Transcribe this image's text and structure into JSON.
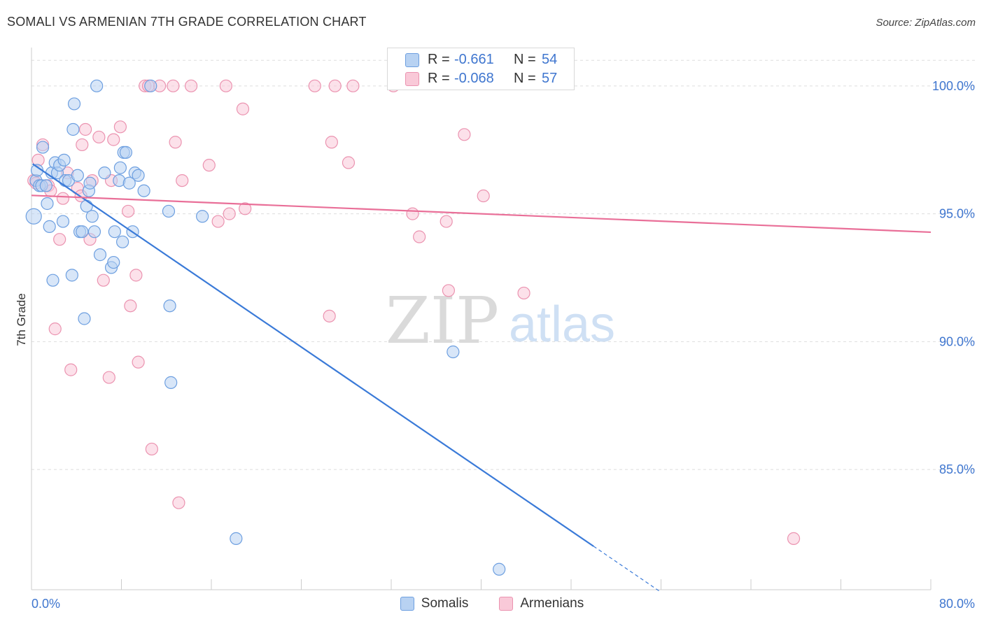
{
  "header": {
    "title": "SOMALI VS ARMENIAN 7TH GRADE CORRELATION CHART",
    "source": "Source: ZipAtlas.com"
  },
  "watermark": {
    "zip": "ZIP",
    "atlas": "atlas"
  },
  "stats": [
    {
      "r_label": "R =",
      "r_value": "-0.661",
      "n_label": "N =",
      "n_value": "54"
    },
    {
      "r_label": "R =",
      "r_value": "-0.068",
      "n_label": "N =",
      "n_value": "57"
    }
  ],
  "legend": {
    "series1": "Somalis",
    "series2": "Armenians"
  },
  "colors": {
    "blue_fill": "#b8d2f2",
    "blue_stroke": "#6d9fe0",
    "blue_line": "#3a7ad8",
    "pink_fill": "#f9c9d8",
    "pink_stroke": "#eb93b0",
    "pink_line": "#e96f98",
    "axis_text": "#3f76cf"
  },
  "chart_data": {
    "type": "scatter",
    "title": "SOMALI VS ARMENIAN 7TH GRADE CORRELATION CHART",
    "xlabel": "",
    "ylabel": "7th Grade",
    "xlim": [
      0,
      80
    ],
    "ylim": [
      80.3,
      101.5
    ],
    "x_tick_labels": [
      "0.0%",
      "80.0%"
    ],
    "y_ticks": [
      {
        "value": 85,
        "label": "85.0%"
      },
      {
        "value": 90,
        "label": "90.0%"
      },
      {
        "value": 95,
        "label": "95.0%"
      },
      {
        "value": 100,
        "label": "100.0%"
      }
    ],
    "grid": true,
    "legend_position": "bottom",
    "series": [
      {
        "name": "Somalis",
        "r": -0.661,
        "n": 54,
        "trend": {
          "x0": 0.1,
          "y0": 96.95,
          "x1": 50.0,
          "y1": 82.0,
          "dash_to_x": 56.0
        },
        "points": [
          [
            0.2,
            94.9
          ],
          [
            0.4,
            96.3
          ],
          [
            0.5,
            96.7
          ],
          [
            0.7,
            96.1
          ],
          [
            0.9,
            96.1
          ],
          [
            1.0,
            97.6
          ],
          [
            1.3,
            96.1
          ],
          [
            1.4,
            95.4
          ],
          [
            1.6,
            94.5
          ],
          [
            1.8,
            96.6
          ],
          [
            1.9,
            92.4
          ],
          [
            2.1,
            97.0
          ],
          [
            2.3,
            96.6
          ],
          [
            2.5,
            96.9
          ],
          [
            2.8,
            94.7
          ],
          [
            2.9,
            97.1
          ],
          [
            3.0,
            96.3
          ],
          [
            3.3,
            96.3
          ],
          [
            3.6,
            92.6
          ],
          [
            3.7,
            98.3
          ],
          [
            3.8,
            99.3
          ],
          [
            4.1,
            96.5
          ],
          [
            4.3,
            94.3
          ],
          [
            4.5,
            94.3
          ],
          [
            4.7,
            90.9
          ],
          [
            4.9,
            95.3
          ],
          [
            5.1,
            95.9
          ],
          [
            5.2,
            96.2
          ],
          [
            5.4,
            94.9
          ],
          [
            5.6,
            94.3
          ],
          [
            5.8,
            100.0
          ],
          [
            6.1,
            93.4
          ],
          [
            6.5,
            96.6
          ],
          [
            7.1,
            92.9
          ],
          [
            7.3,
            93.1
          ],
          [
            7.4,
            94.3
          ],
          [
            7.8,
            96.3
          ],
          [
            7.9,
            96.8
          ],
          [
            8.1,
            93.9
          ],
          [
            8.2,
            97.4
          ],
          [
            8.4,
            97.4
          ],
          [
            8.7,
            96.2
          ],
          [
            9.0,
            94.3
          ],
          [
            9.2,
            96.6
          ],
          [
            9.5,
            96.5
          ],
          [
            10.0,
            95.9
          ],
          [
            10.6,
            100.0
          ],
          [
            12.2,
            95.1
          ],
          [
            12.3,
            91.4
          ],
          [
            12.4,
            88.4
          ],
          [
            15.2,
            94.9
          ],
          [
            18.2,
            82.3
          ],
          [
            37.5,
            89.6
          ],
          [
            41.6,
            81.1
          ]
        ]
      },
      {
        "name": "Armenians",
        "r": -0.068,
        "n": 57,
        "trend": {
          "x0": 0.0,
          "y0": 95.72,
          "x1": 80.0,
          "y1": 94.28
        },
        "points": [
          [
            0.2,
            96.3
          ],
          [
            0.4,
            96.2
          ],
          [
            0.6,
            97.1
          ],
          [
            1.0,
            97.7
          ],
          [
            1.5,
            96.1
          ],
          [
            1.7,
            95.9
          ],
          [
            2.1,
            90.5
          ],
          [
            2.5,
            94.0
          ],
          [
            2.8,
            95.6
          ],
          [
            3.2,
            96.6
          ],
          [
            3.5,
            88.9
          ],
          [
            4.1,
            96.0
          ],
          [
            4.4,
            95.7
          ],
          [
            4.5,
            97.7
          ],
          [
            4.8,
            98.3
          ],
          [
            5.2,
            94.0
          ],
          [
            5.4,
            96.3
          ],
          [
            6.0,
            98.0
          ],
          [
            6.4,
            92.4
          ],
          [
            6.9,
            88.6
          ],
          [
            7.1,
            96.3
          ],
          [
            7.3,
            97.9
          ],
          [
            7.9,
            98.4
          ],
          [
            8.6,
            95.1
          ],
          [
            8.8,
            91.4
          ],
          [
            9.3,
            92.6
          ],
          [
            9.5,
            89.2
          ],
          [
            10.1,
            100.0
          ],
          [
            10.4,
            100.0
          ],
          [
            10.7,
            85.8
          ],
          [
            11.4,
            100.0
          ],
          [
            12.6,
            100.0
          ],
          [
            12.8,
            97.8
          ],
          [
            13.1,
            83.7
          ],
          [
            13.4,
            96.3
          ],
          [
            14.2,
            100.0
          ],
          [
            15.8,
            96.9
          ],
          [
            16.6,
            94.7
          ],
          [
            17.3,
            100.0
          ],
          [
            17.6,
            95.0
          ],
          [
            18.8,
            99.1
          ],
          [
            19.0,
            95.2
          ],
          [
            25.2,
            100.0
          ],
          [
            26.5,
            91.0
          ],
          [
            26.7,
            97.8
          ],
          [
            27.0,
            100.0
          ],
          [
            28.2,
            97.0
          ],
          [
            28.6,
            100.0
          ],
          [
            32.2,
            100.0
          ],
          [
            33.9,
            95.0
          ],
          [
            34.5,
            94.1
          ],
          [
            36.9,
            94.7
          ],
          [
            37.1,
            92.0
          ],
          [
            38.5,
            98.1
          ],
          [
            40.2,
            95.7
          ],
          [
            43.8,
            91.9
          ],
          [
            67.8,
            82.3
          ]
        ]
      }
    ]
  }
}
